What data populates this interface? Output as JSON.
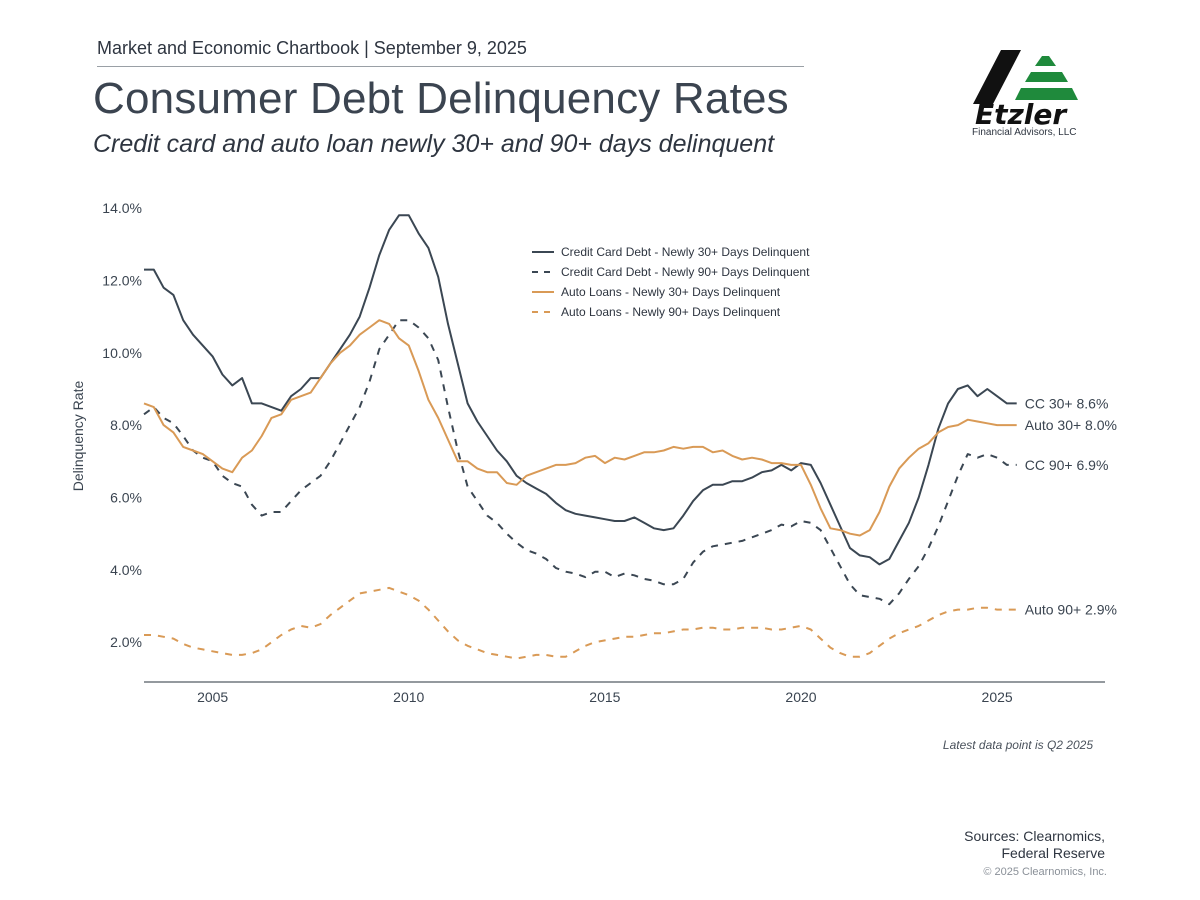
{
  "header": {
    "chartbook": "Market and Economic Chartbook | September 9, 2025",
    "title": "Consumer Debt Delinquency Rates",
    "subtitle": "Credit card and auto loan newly 30+ and 90+ days delinquent"
  },
  "logo": {
    "name": "Etzler",
    "tagline": "Financial Advisors, LLC"
  },
  "footer": {
    "note": "Latest data point is Q2 2025",
    "sources_line1": "Sources: Clearnomics,",
    "sources_line2": "Federal Reserve",
    "copyright": "© 2025 Clearnomics, Inc."
  },
  "colors": {
    "cc": "#3b4753",
    "auto": "#d99a56",
    "axis": "#555c64",
    "text": "#3a4450"
  },
  "chart_data": {
    "type": "line",
    "title": "Consumer Debt Delinquency Rates",
    "ylabel": "Delinquency Rate",
    "xlabel": "",
    "xlim": [
      2003.25,
      2027.75
    ],
    "ylim": [
      0.9,
      14.5
    ],
    "xticks": [
      2005,
      2010,
      2015,
      2020,
      2025
    ],
    "xtick_labels": [
      "2005",
      "2010",
      "2015",
      "2020",
      "2025"
    ],
    "yticks": [
      2,
      4,
      6,
      8,
      10,
      12,
      14
    ],
    "ytick_labels": [
      "2.0%",
      "4.0%",
      "6.0%",
      "8.0%",
      "10.0%",
      "12.0%",
      "14.0%"
    ],
    "legend_position": "top-center",
    "series": [
      {
        "key": "cc30",
        "name": "Credit Card Debt - Newly 30+ Days Delinquent",
        "end_label": "CC 30+ 8.6%",
        "color": "#3b4753",
        "dashed": false,
        "x": [
          2003.25,
          2003.5,
          2003.75,
          2004,
          2004.25,
          2004.5,
          2004.75,
          2005,
          2005.25,
          2005.5,
          2005.75,
          2006,
          2006.25,
          2006.5,
          2006.75,
          2007,
          2007.25,
          2007.5,
          2007.75,
          2008,
          2008.25,
          2008.5,
          2008.75,
          2009,
          2009.25,
          2009.5,
          2009.75,
          2010,
          2010.25,
          2010.5,
          2010.75,
          2011,
          2011.25,
          2011.5,
          2011.75,
          2012,
          2012.25,
          2012.5,
          2012.75,
          2013,
          2013.25,
          2013.5,
          2013.75,
          2014,
          2014.25,
          2014.5,
          2014.75,
          2015,
          2015.25,
          2015.5,
          2015.75,
          2016,
          2016.25,
          2016.5,
          2016.75,
          2017,
          2017.25,
          2017.5,
          2017.75,
          2018,
          2018.25,
          2018.5,
          2018.75,
          2019,
          2019.25,
          2019.5,
          2019.75,
          2020,
          2020.25,
          2020.5,
          2020.75,
          2021,
          2021.25,
          2021.5,
          2021.75,
          2022,
          2022.25,
          2022.5,
          2022.75,
          2023,
          2023.25,
          2023.5,
          2023.75,
          2024,
          2024.25,
          2024.5,
          2024.75,
          2025,
          2025.25,
          2025.5
        ],
        "y": [
          12.3,
          12.3,
          11.8,
          11.6,
          10.9,
          10.5,
          10.2,
          9.9,
          9.4,
          9.1,
          9.3,
          8.6,
          8.6,
          8.5,
          8.4,
          8.8,
          9.0,
          9.3,
          9.3,
          9.7,
          10.1,
          10.5,
          11.0,
          11.8,
          12.7,
          13.4,
          13.8,
          13.8,
          13.3,
          12.9,
          12.1,
          10.8,
          9.7,
          8.6,
          8.1,
          7.7,
          7.3,
          7.0,
          6.6,
          6.4,
          6.25,
          6.1,
          5.85,
          5.65,
          5.55,
          5.5,
          5.45,
          5.4,
          5.35,
          5.35,
          5.45,
          5.3,
          5.15,
          5.1,
          5.15,
          5.5,
          5.9,
          6.2,
          6.35,
          6.35,
          6.45,
          6.45,
          6.55,
          6.7,
          6.75,
          6.9,
          6.75,
          6.95,
          6.9,
          6.4,
          5.8,
          5.2,
          4.6,
          4.4,
          4.35,
          4.15,
          4.3,
          4.8,
          5.3,
          6.0,
          6.9,
          7.9,
          8.6,
          9.0,
          9.1,
          8.8,
          9.0,
          8.8,
          8.6,
          8.6
        ]
      },
      {
        "key": "cc90",
        "name": "Credit Card Debt - Newly 90+ Days Delinquent",
        "end_label": "CC 90+ 6.9%",
        "color": "#3b4753",
        "dashed": true,
        "x": [
          2003.25,
          2003.5,
          2003.75,
          2004,
          2004.25,
          2004.5,
          2004.75,
          2005,
          2005.25,
          2005.5,
          2005.75,
          2006,
          2006.25,
          2006.5,
          2006.75,
          2007,
          2007.25,
          2007.5,
          2007.75,
          2008,
          2008.25,
          2008.5,
          2008.75,
          2009,
          2009.25,
          2009.5,
          2009.75,
          2010,
          2010.25,
          2010.5,
          2010.75,
          2011,
          2011.25,
          2011.5,
          2011.75,
          2012,
          2012.25,
          2012.5,
          2012.75,
          2013,
          2013.25,
          2013.5,
          2013.75,
          2014,
          2014.25,
          2014.5,
          2014.75,
          2015,
          2015.25,
          2015.5,
          2015.75,
          2016,
          2016.25,
          2016.5,
          2016.75,
          2017,
          2017.25,
          2017.5,
          2017.75,
          2018,
          2018.25,
          2018.5,
          2018.75,
          2019,
          2019.25,
          2019.5,
          2019.75,
          2020,
          2020.25,
          2020.5,
          2020.75,
          2021,
          2021.25,
          2021.5,
          2021.75,
          2022,
          2022.25,
          2022.5,
          2022.75,
          2023,
          2023.25,
          2023.5,
          2023.75,
          2024,
          2024.25,
          2024.5,
          2024.75,
          2025,
          2025.25,
          2025.5
        ],
        "y": [
          8.3,
          8.5,
          8.2,
          8.05,
          7.7,
          7.3,
          7.1,
          7.0,
          6.6,
          6.4,
          6.3,
          5.8,
          5.5,
          5.6,
          5.6,
          5.9,
          6.2,
          6.4,
          6.6,
          7.0,
          7.5,
          8.0,
          8.5,
          9.2,
          10.1,
          10.5,
          10.9,
          10.9,
          10.7,
          10.4,
          9.8,
          8.5,
          7.3,
          6.3,
          5.9,
          5.5,
          5.3,
          5.0,
          4.75,
          4.55,
          4.45,
          4.3,
          4.05,
          3.95,
          3.9,
          3.8,
          3.95,
          3.95,
          3.8,
          3.9,
          3.85,
          3.75,
          3.7,
          3.6,
          3.6,
          3.75,
          4.2,
          4.5,
          4.65,
          4.7,
          4.75,
          4.8,
          4.9,
          5.0,
          5.1,
          5.25,
          5.2,
          5.35,
          5.3,
          5.1,
          4.6,
          4.1,
          3.6,
          3.3,
          3.25,
          3.2,
          3.05,
          3.35,
          3.75,
          4.1,
          4.6,
          5.2,
          5.9,
          6.6,
          7.2,
          7.1,
          7.2,
          7.1,
          6.9,
          6.9
        ]
      },
      {
        "key": "auto30",
        "name": "Auto Loans - Newly 30+ Days Delinquent",
        "end_label": "Auto 30+ 8.0%",
        "color": "#d99a56",
        "dashed": false,
        "x": [
          2003.25,
          2003.5,
          2003.75,
          2004,
          2004.25,
          2004.5,
          2004.75,
          2005,
          2005.25,
          2005.5,
          2005.75,
          2006,
          2006.25,
          2006.5,
          2006.75,
          2007,
          2007.25,
          2007.5,
          2007.75,
          2008,
          2008.25,
          2008.5,
          2008.75,
          2009,
          2009.25,
          2009.5,
          2009.75,
          2010,
          2010.25,
          2010.5,
          2010.75,
          2011,
          2011.25,
          2011.5,
          2011.75,
          2012,
          2012.25,
          2012.5,
          2012.75,
          2013,
          2013.25,
          2013.5,
          2013.75,
          2014,
          2014.25,
          2014.5,
          2014.75,
          2015,
          2015.25,
          2015.5,
          2015.75,
          2016,
          2016.25,
          2016.5,
          2016.75,
          2017,
          2017.25,
          2017.5,
          2017.75,
          2018,
          2018.25,
          2018.5,
          2018.75,
          2019,
          2019.25,
          2019.5,
          2019.75,
          2020,
          2020.25,
          2020.5,
          2020.75,
          2021,
          2021.25,
          2021.5,
          2021.75,
          2022,
          2022.25,
          2022.5,
          2022.75,
          2023,
          2023.25,
          2023.5,
          2023.75,
          2024,
          2024.25,
          2024.5,
          2024.75,
          2025,
          2025.25,
          2025.5
        ],
        "y": [
          8.6,
          8.5,
          8.0,
          7.8,
          7.4,
          7.3,
          7.2,
          7.0,
          6.8,
          6.7,
          7.1,
          7.3,
          7.7,
          8.2,
          8.3,
          8.7,
          8.8,
          8.9,
          9.3,
          9.7,
          10.0,
          10.2,
          10.5,
          10.7,
          10.9,
          10.8,
          10.4,
          10.2,
          9.5,
          8.7,
          8.2,
          7.6,
          7.0,
          7.0,
          6.8,
          6.7,
          6.7,
          6.4,
          6.35,
          6.6,
          6.7,
          6.8,
          6.9,
          6.9,
          6.95,
          7.1,
          7.15,
          6.95,
          7.1,
          7.05,
          7.15,
          7.25,
          7.25,
          7.3,
          7.4,
          7.35,
          7.4,
          7.4,
          7.25,
          7.3,
          7.15,
          7.05,
          7.1,
          7.05,
          6.95,
          6.95,
          6.9,
          6.9,
          6.35,
          5.7,
          5.15,
          5.1,
          5.0,
          4.95,
          5.1,
          5.6,
          6.3,
          6.8,
          7.1,
          7.35,
          7.5,
          7.8,
          7.95,
          8.0,
          8.15,
          8.1,
          8.05,
          8.0,
          8.0,
          8.0
        ]
      },
      {
        "key": "auto90",
        "name": "Auto Loans - Newly 90+ Days Delinquent",
        "end_label": "Auto 90+ 2.9%",
        "color": "#d99a56",
        "dashed": true,
        "x": [
          2003.25,
          2003.5,
          2003.75,
          2004,
          2004.25,
          2004.5,
          2004.75,
          2005,
          2005.25,
          2005.5,
          2005.75,
          2006,
          2006.25,
          2006.5,
          2006.75,
          2007,
          2007.25,
          2007.5,
          2007.75,
          2008,
          2008.25,
          2008.5,
          2008.75,
          2009,
          2009.25,
          2009.5,
          2009.75,
          2010,
          2010.25,
          2010.5,
          2010.75,
          2011,
          2011.25,
          2011.5,
          2011.75,
          2012,
          2012.25,
          2012.5,
          2012.75,
          2013,
          2013.25,
          2013.5,
          2013.75,
          2014,
          2014.25,
          2014.5,
          2014.75,
          2015,
          2015.25,
          2015.5,
          2015.75,
          2016,
          2016.25,
          2016.5,
          2016.75,
          2017,
          2017.25,
          2017.5,
          2017.75,
          2018,
          2018.25,
          2018.5,
          2018.75,
          2019,
          2019.25,
          2019.5,
          2019.75,
          2020,
          2020.25,
          2020.5,
          2020.75,
          2021,
          2021.25,
          2021.5,
          2021.75,
          2022,
          2022.25,
          2022.5,
          2022.75,
          2023,
          2023.25,
          2023.5,
          2023.75,
          2024,
          2024.25,
          2024.5,
          2024.75,
          2025,
          2025.25,
          2025.5
        ],
        "y": [
          2.2,
          2.2,
          2.15,
          2.1,
          1.95,
          1.85,
          1.8,
          1.75,
          1.7,
          1.65,
          1.65,
          1.7,
          1.8,
          2.0,
          2.2,
          2.35,
          2.45,
          2.4,
          2.5,
          2.75,
          2.95,
          3.15,
          3.35,
          3.4,
          3.45,
          3.5,
          3.4,
          3.3,
          3.15,
          2.9,
          2.6,
          2.3,
          2.05,
          1.9,
          1.8,
          1.7,
          1.65,
          1.6,
          1.55,
          1.6,
          1.65,
          1.65,
          1.6,
          1.6,
          1.75,
          1.9,
          2.0,
          2.05,
          2.1,
          2.15,
          2.15,
          2.2,
          2.25,
          2.25,
          2.3,
          2.35,
          2.35,
          2.4,
          2.4,
          2.35,
          2.35,
          2.4,
          2.4,
          2.4,
          2.35,
          2.35,
          2.4,
          2.45,
          2.35,
          2.1,
          1.85,
          1.7,
          1.6,
          1.6,
          1.7,
          1.9,
          2.1,
          2.25,
          2.35,
          2.45,
          2.6,
          2.75,
          2.85,
          2.9,
          2.9,
          2.95,
          2.95,
          2.9,
          2.9,
          2.9
        ]
      }
    ]
  }
}
